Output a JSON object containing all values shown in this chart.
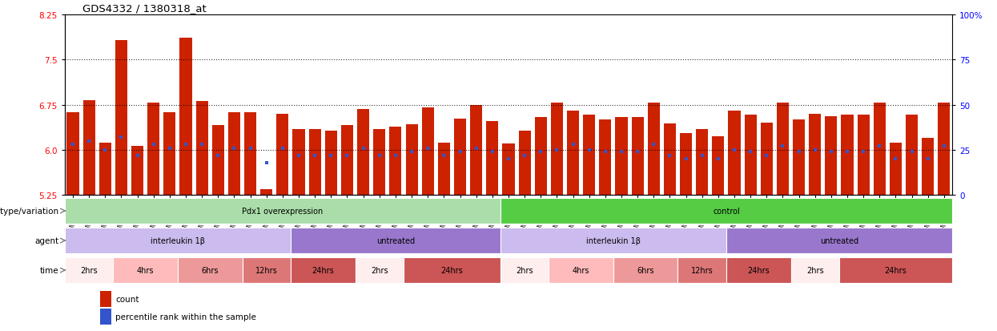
{
  "title": "GDS4332 / 1380318_at",
  "ylim_left": [
    5.25,
    8.25
  ],
  "yticks_left": [
    5.25,
    6.0,
    6.75,
    7.5,
    8.25
  ],
  "yticks_right": [
    0,
    25,
    50,
    75,
    100
  ],
  "right_tick_labels": [
    "0",
    "25",
    "50",
    "75",
    "100%"
  ],
  "hlines": [
    6.0,
    6.75,
    7.5
  ],
  "samples": [
    "GSM998740",
    "GSM998753",
    "GSM998766",
    "GSM998774",
    "GSM998729",
    "GSM998754",
    "GSM998767",
    "GSM998775",
    "GSM998741",
    "GSM998755",
    "GSM998768",
    "GSM998776",
    "GSM998730",
    "GSM998742",
    "GSM998747",
    "GSM998777",
    "GSM998731",
    "GSM998748",
    "GSM998756",
    "GSM998769",
    "GSM998732",
    "GSM998749",
    "GSM998757",
    "GSM998778",
    "GSM998733",
    "GSM998758",
    "GSM998770",
    "GSM998779",
    "GSM998734",
    "GSM998743",
    "GSM998759",
    "GSM998780",
    "GSM998735",
    "GSM998750",
    "GSM998760",
    "GSM998782",
    "GSM998751",
    "GSM998761",
    "GSM998771",
    "GSM998736",
    "GSM998745",
    "GSM998762",
    "GSM998781",
    "GSM998737",
    "GSM998752",
    "GSM998763",
    "GSM998772",
    "GSM998738",
    "GSM998764",
    "GSM998773",
    "GSM998783",
    "GSM998739",
    "GSM998746",
    "GSM998765",
    "GSM998784"
  ],
  "bar_values": [
    6.62,
    6.82,
    6.12,
    7.82,
    6.07,
    6.78,
    6.62,
    7.86,
    6.81,
    6.41,
    6.63,
    6.63,
    5.35,
    6.6,
    6.35,
    6.35,
    6.32,
    6.41,
    6.68,
    6.35,
    6.38,
    6.42,
    6.71,
    6.12,
    6.52,
    6.74,
    6.48,
    6.1,
    6.32,
    6.55,
    6.78,
    6.65,
    6.58,
    6.5,
    6.55,
    6.55,
    6.78,
    6.44,
    6.28,
    6.35,
    6.22,
    6.65,
    6.58,
    6.45,
    6.78,
    6.5,
    6.6,
    6.56,
    6.58,
    6.58,
    6.78,
    6.12,
    6.58,
    6.2,
    6.78
  ],
  "percentile_values": [
    28,
    30,
    25,
    32,
    22,
    28,
    26,
    28,
    28,
    22,
    26,
    26,
    18,
    26,
    22,
    22,
    22,
    22,
    26,
    22,
    22,
    24,
    26,
    22,
    24,
    26,
    24,
    20,
    22,
    24,
    25,
    28,
    25,
    24,
    24,
    24,
    28,
    22,
    20,
    22,
    20,
    25,
    24,
    22,
    27,
    24,
    25,
    24,
    24,
    24,
    27,
    20,
    24,
    20,
    27
  ],
  "bar_color": "#cc2200",
  "percentile_color": "#3355cc",
  "background_color": "#ffffff",
  "geno_segments": [
    {
      "text": "Pdx1 overexpression",
      "start": 0,
      "end": 27,
      "color": "#aaddaa"
    },
    {
      "text": "control",
      "start": 27,
      "end": 55,
      "color": "#55cc44"
    }
  ],
  "agent_segments": [
    {
      "text": "interleukin 1β",
      "start": 0,
      "end": 14,
      "color": "#ccbbee"
    },
    {
      "text": "untreated",
      "start": 14,
      "end": 27,
      "color": "#9977cc"
    },
    {
      "text": "interleukin 1β",
      "start": 27,
      "end": 41,
      "color": "#ccbbee"
    },
    {
      "text": "untreated",
      "start": 41,
      "end": 55,
      "color": "#9977cc"
    }
  ],
  "time_segments": [
    {
      "text": "2hrs",
      "start": 0,
      "end": 3,
      "color": "#ffeeee"
    },
    {
      "text": "4hrs",
      "start": 3,
      "end": 7,
      "color": "#ffbbbb"
    },
    {
      "text": "6hrs",
      "start": 7,
      "end": 11,
      "color": "#ee9999"
    },
    {
      "text": "12hrs",
      "start": 11,
      "end": 14,
      "color": "#dd7777"
    },
    {
      "text": "24hrs",
      "start": 14,
      "end": 18,
      "color": "#cc5555"
    },
    {
      "text": "2hrs",
      "start": 18,
      "end": 21,
      "color": "#ffeeee"
    },
    {
      "text": "24hrs",
      "start": 21,
      "end": 27,
      "color": "#cc5555"
    },
    {
      "text": "2hrs",
      "start": 27,
      "end": 30,
      "color": "#ffeeee"
    },
    {
      "text": "4hrs",
      "start": 30,
      "end": 34,
      "color": "#ffbbbb"
    },
    {
      "text": "6hrs",
      "start": 34,
      "end": 38,
      "color": "#ee9999"
    },
    {
      "text": "12hrs",
      "start": 38,
      "end": 41,
      "color": "#dd7777"
    },
    {
      "text": "24hrs",
      "start": 41,
      "end": 45,
      "color": "#cc5555"
    },
    {
      "text": "2hrs",
      "start": 45,
      "end": 48,
      "color": "#ffeeee"
    },
    {
      "text": "24hrs",
      "start": 48,
      "end": 55,
      "color": "#cc5555"
    }
  ],
  "row_labels": [
    "genotype/variation",
    "agent",
    "time"
  ],
  "legend_items": [
    {
      "label": "count",
      "color": "#cc2200"
    },
    {
      "label": "percentile rank within the sample",
      "color": "#3355cc"
    }
  ]
}
